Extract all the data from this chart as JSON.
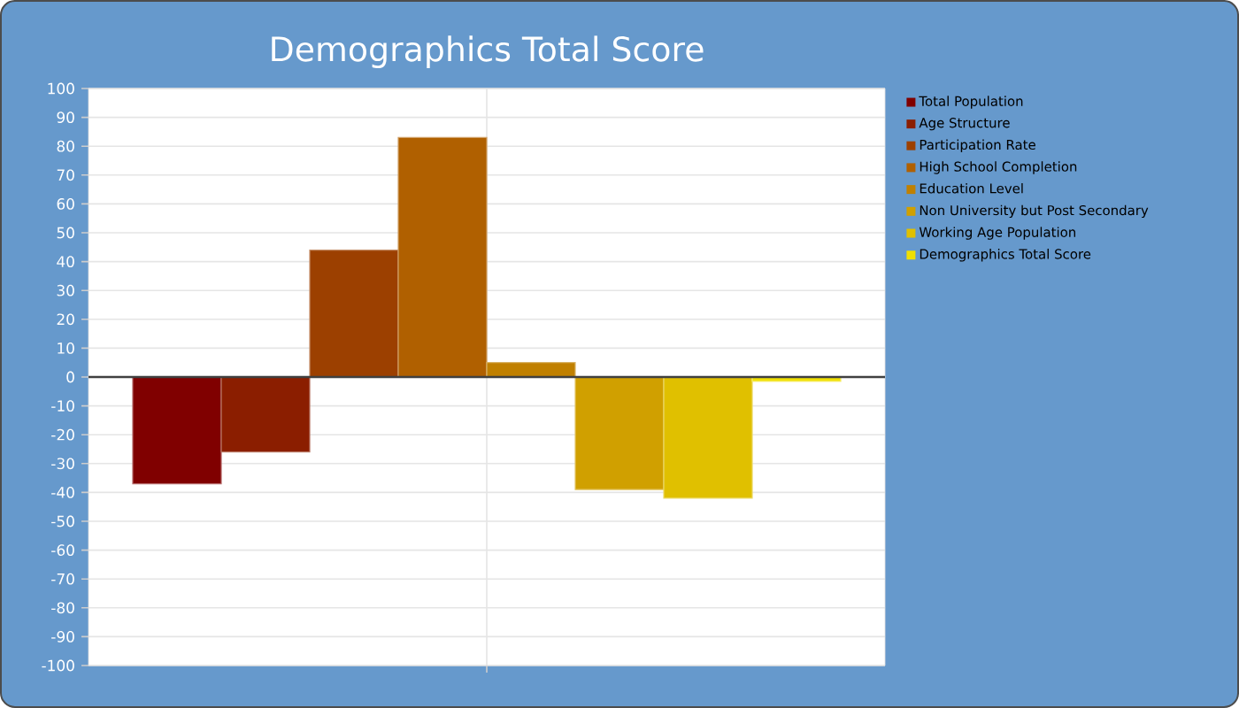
{
  "chart_data": {
    "type": "bar",
    "title": "Demographics Total Score",
    "categories": [
      null
    ],
    "series": [
      {
        "name": "Total Population",
        "color": "#800000",
        "values": [
          -37
        ]
      },
      {
        "name": "Age Structure",
        "color": "#8b1e00",
        "values": [
          -26
        ]
      },
      {
        "name": "Participation Rate",
        "color": "#9c4000",
        "values": [
          44
        ]
      },
      {
        "name": "High School Completion",
        "color": "#b06000",
        "values": [
          83
        ]
      },
      {
        "name": "Education Level",
        "color": "#c08000",
        "values": [
          5
        ]
      },
      {
        "name": "Non University but Post Secondary",
        "color": "#d0a000",
        "values": [
          -39
        ]
      },
      {
        "name": "Working Age Population",
        "color": "#e0c000",
        "values": [
          -42
        ]
      },
      {
        "name": "Demographics Total Score",
        "color": "#f0e000",
        "values": [
          -1.5
        ]
      }
    ],
    "ylim": [
      -100,
      100
    ],
    "yticks": [
      -100,
      -90,
      -80,
      -70,
      -60,
      -50,
      -40,
      -30,
      -20,
      -10,
      0,
      10,
      20,
      30,
      40,
      50,
      60,
      70,
      80,
      90,
      100
    ],
    "grid": true,
    "legend": "right",
    "tick_labels": "y"
  }
}
